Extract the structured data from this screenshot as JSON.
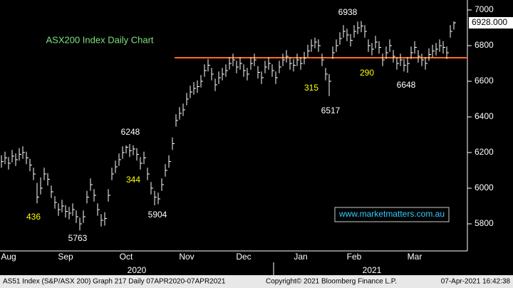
{
  "chart_data": {
    "type": "ohlc",
    "title": "ASX200 Index Daily Chart",
    "color": "#ffffff",
    "high": [
      6185,
      6205,
      6175,
      6215,
      6195,
      6225,
      6235,
      6205,
      6165,
      6115,
      6030,
      6060,
      6115,
      6085,
      6015,
      5955,
      5915,
      5935,
      5905,
      5895,
      5915,
      5875,
      5835,
      5875,
      5985,
      6055,
      5995,
      5915,
      5855,
      5865,
      5995,
      6115,
      6155,
      6195,
      6235,
      6240,
      6248,
      6240,
      6225,
      6175,
      6205,
      6115,
      6035,
      5985,
      5975,
      6055,
      6135,
      6185,
      6285,
      6415,
      6455,
      6475,
      6535,
      6575,
      6595,
      6605,
      6635,
      6695,
      6725,
      6675,
      6615,
      6655,
      6675,
      6695,
      6735,
      6755,
      6715,
      6735,
      6695,
      6675,
      6735,
      6755,
      6685,
      6655,
      6715,
      6735,
      6695,
      6655,
      6715,
      6755,
      6775,
      6735,
      6725,
      6755,
      6735,
      6765,
      6805,
      6835,
      6845,
      6835,
      6755,
      6675,
      6640,
      6795,
      6835,
      6875,
      6915,
      6895,
      6865,
      6915,
      6935,
      6938,
      6915,
      6835,
      6815,
      6855,
      6825,
      6755,
      6795,
      6835,
      6775,
      6735,
      6755,
      6725,
      6735,
      6795,
      6825,
      6775,
      6755,
      6735,
      6785,
      6805,
      6815,
      6835,
      6825,
      6795,
      6915,
      6936
    ],
    "low": [
      6115,
      6135,
      6105,
      6145,
      6125,
      6155,
      6165,
      6135,
      6095,
      6045,
      5915,
      5965,
      6045,
      6015,
      5945,
      5885,
      5845,
      5865,
      5835,
      5825,
      5845,
      5805,
      5763,
      5805,
      5915,
      5985,
      5925,
      5845,
      5785,
      5790,
      5925,
      6045,
      6085,
      6125,
      6165,
      6195,
      6175,
      6185,
      6155,
      6105,
      6135,
      6045,
      5965,
      5904,
      5910,
      5985,
      6065,
      6115,
      6215,
      6345,
      6385,
      6405,
      6465,
      6505,
      6525,
      6535,
      6565,
      6625,
      6655,
      6605,
      6545,
      6585,
      6605,
      6625,
      6665,
      6685,
      6645,
      6665,
      6625,
      6605,
      6665,
      6685,
      6615,
      6585,
      6645,
      6665,
      6625,
      6585,
      6645,
      6685,
      6705,
      6665,
      6655,
      6685,
      6665,
      6695,
      6735,
      6765,
      6785,
      6765,
      6685,
      6605,
      6517,
      6725,
      6765,
      6805,
      6845,
      6825,
      6795,
      6845,
      6865,
      6875,
      6845,
      6765,
      6745,
      6785,
      6755,
      6685,
      6725,
      6765,
      6705,
      6665,
      6685,
      6655,
      6648,
      6725,
      6755,
      6705,
      6685,
      6665,
      6715,
      6735,
      6745,
      6765,
      6755,
      6725,
      6845,
      6890
    ],
    "close": [
      6150,
      6170,
      6140,
      6180,
      6160,
      6190,
      6200,
      6170,
      6130,
      6080,
      5950,
      6000,
      6080,
      6050,
      5980,
      5920,
      5880,
      5900,
      5870,
      5860,
      5880,
      5840,
      5800,
      5840,
      5950,
      6020,
      5960,
      5880,
      5820,
      5830,
      5960,
      6080,
      6120,
      6160,
      6200,
      6230,
      6210,
      6220,
      6190,
      6140,
      6170,
      6080,
      6000,
      5950,
      5940,
      6020,
      6100,
      6150,
      6250,
      6380,
      6420,
      6440,
      6500,
      6540,
      6560,
      6570,
      6600,
      6660,
      6690,
      6640,
      6580,
      6620,
      6640,
      6660,
      6700,
      6720,
      6680,
      6700,
      6660,
      6640,
      6700,
      6720,
      6650,
      6620,
      6680,
      6700,
      6660,
      6620,
      6680,
      6720,
      6740,
      6700,
      6690,
      6720,
      6700,
      6730,
      6770,
      6800,
      6820,
      6800,
      6720,
      6640,
      6600,
      6760,
      6800,
      6840,
      6880,
      6860,
      6830,
      6880,
      6900,
      6910,
      6880,
      6800,
      6780,
      6820,
      6790,
      6720,
      6760,
      6800,
      6740,
      6700,
      6720,
      6690,
      6700,
      6760,
      6790,
      6740,
      6720,
      6700,
      6750,
      6770,
      6780,
      6800,
      6790,
      6760,
      6880,
      6928
    ],
    "ylim": [
      5648,
      7056
    ],
    "yticks": [
      5800,
      6000,
      6200,
      6400,
      6600,
      6800,
      7000
    ],
    "xticks": [
      {
        "value": 2,
        "label": "Aug"
      },
      {
        "value": 18,
        "label": "Sep"
      },
      {
        "value": 35,
        "label": "Oct"
      },
      {
        "value": 52,
        "label": "Nov"
      },
      {
        "value": 68,
        "label": "Dec"
      },
      {
        "value": 84,
        "label": "Jan"
      },
      {
        "value": 99,
        "label": "Feb"
      },
      {
        "value": 116,
        "label": "Mar"
      }
    ],
    "year_labels": [
      {
        "value": 38,
        "label": "2020"
      },
      {
        "value": 104,
        "label": "2021"
      }
    ],
    "hline": {
      "value": 6732,
      "color": "#ff6a1a"
    },
    "last_price": {
      "value": 6928,
      "label": "6928.000"
    },
    "annotations": [
      {
        "text": "6938",
        "color": "#ffffff"
      },
      {
        "text": "315",
        "color": "#ffff00"
      },
      {
        "text": "6517",
        "color": "#ffffff"
      },
      {
        "text": "290",
        "color": "#ffff00"
      },
      {
        "text": "6648",
        "color": "#ffffff"
      },
      {
        "text": "6248",
        "color": "#ffffff"
      },
      {
        "text": "344",
        "color": "#ffff00"
      },
      {
        "text": "5904",
        "color": "#ffffff"
      },
      {
        "text": "436",
        "color": "#ffff00"
      },
      {
        "text": "5763",
        "color": "#ffffff"
      }
    ],
    "website": "www.marketmatters.com.au",
    "footer": {
      "left": "AS51 Index (S&P/ASX 200) Graph 217  Daily 07APR2020-07APR2021",
      "middle": "Copyright© 2021 Bloomberg Finance L.P.",
      "right": "07-Apr-2021 16:42:38"
    }
  }
}
